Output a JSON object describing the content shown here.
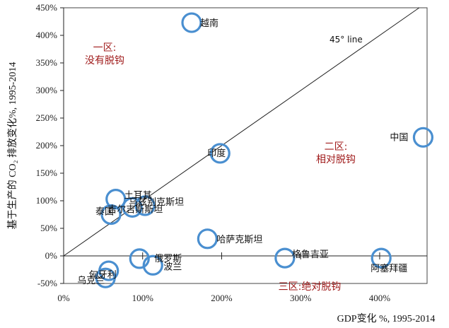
{
  "chart_data": {
    "type": "scatter",
    "xlabel": "GDP变化 %, 1995-2014",
    "ylabel": "基于生产的 CO₂ 排放变化%, 1995-2014",
    "xlim": [
      0,
      460
    ],
    "ylim": [
      -50,
      450
    ],
    "x_ticks": [
      "0%",
      "100%",
      "200%",
      "300%",
      "400%"
    ],
    "y_ticks": [
      "-50%",
      "0%",
      "50%",
      "100%",
      "150%",
      "200%",
      "250%",
      "300%",
      "350%",
      "400%",
      "450%"
    ],
    "reference_line": {
      "label": "45° line"
    },
    "zones": [
      {
        "lines": [
          "一区:",
          "没有脱钩"
        ]
      },
      {
        "lines": [
          "二区:",
          "相对脱钩"
        ]
      },
      {
        "lines": [
          "三区:绝对脱钩"
        ]
      }
    ],
    "points": [
      {
        "name": "越南",
        "x": 162,
        "y": 423
      },
      {
        "name": "中国",
        "x": 455,
        "y": 215
      },
      {
        "name": "印度",
        "x": 198,
        "y": 186
      },
      {
        "name": "土耳其",
        "x": 66,
        "y": 103
      },
      {
        "name": "乌兹别克斯坦",
        "x": 103,
        "y": 91
      },
      {
        "name": "吉尔吉斯斯坦",
        "x": 87,
        "y": 88
      },
      {
        "name": "泰国",
        "x": 60,
        "y": 75
      },
      {
        "name": "哈萨克斯坦",
        "x": 182,
        "y": 31
      },
      {
        "name": "格鲁吉亚",
        "x": 280,
        "y": -4
      },
      {
        "name": "阿塞拜疆",
        "x": 402,
        "y": -4
      },
      {
        "name": "俄罗斯",
        "x": 96,
        "y": -5
      },
      {
        "name": "波兰",
        "x": 113,
        "y": -17
      },
      {
        "name": "匈牙利",
        "x": 57,
        "y": -27
      },
      {
        "name": "乌克兰",
        "x": 53,
        "y": -40
      }
    ]
  }
}
